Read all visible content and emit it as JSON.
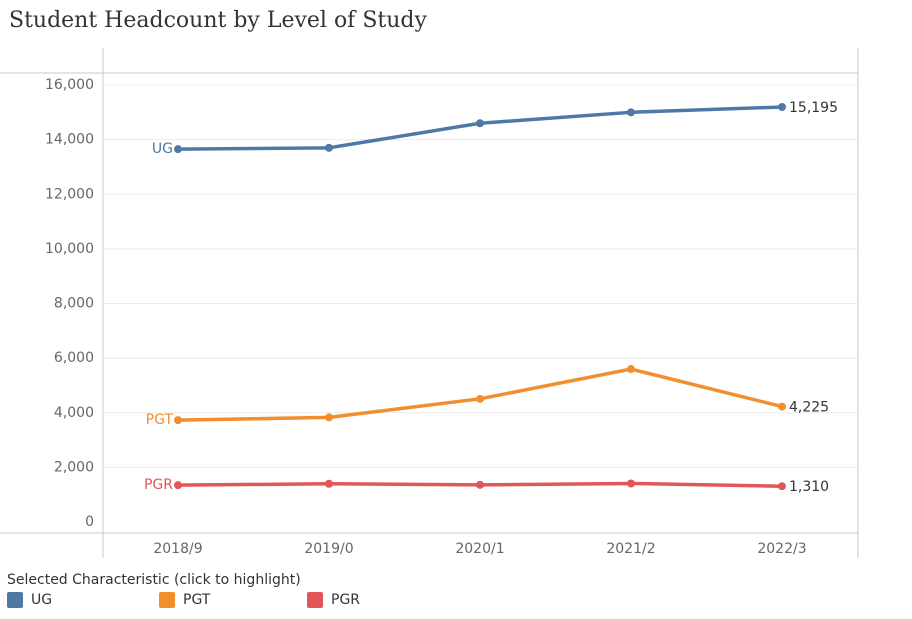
{
  "title": "Student Headcount by Level of Study",
  "legend": {
    "title": "Selected Characteristic (click to highlight)",
    "items": [
      {
        "label": "UG",
        "color": "#4e79a7"
      },
      {
        "label": "PGT",
        "color": "#f28e2b"
      },
      {
        "label": "PGR",
        "color": "#e15759"
      }
    ]
  },
  "chart_data": {
    "type": "line",
    "title": "Student Headcount by Level of Study",
    "xlabel": "",
    "ylabel": "",
    "categories": [
      "2018/9",
      "2019/0",
      "2020/1",
      "2021/2",
      "2022/3"
    ],
    "ylim": [
      0,
      16600
    ],
    "yticks": [
      0,
      2000,
      4000,
      6000,
      8000,
      10000,
      12000,
      14000,
      16000
    ],
    "ytick_labels": [
      "0",
      "2,000",
      "4,000",
      "6,000",
      "8,000",
      "10,000",
      "12,000",
      "14,000",
      "16,000"
    ],
    "grid": true,
    "legend_position": "bottom-left",
    "series": [
      {
        "name": "UG",
        "color": "#4e79a7",
        "values": [
          13650,
          13700,
          14600,
          15000,
          15195
        ],
        "end_label": "15,195"
      },
      {
        "name": "PGT",
        "color": "#f28e2b",
        "values": [
          3730,
          3830,
          4510,
          5600,
          4225
        ],
        "end_label": "4,225"
      },
      {
        "name": "PGR",
        "color": "#e15759",
        "values": [
          1350,
          1400,
          1360,
          1410,
          1310
        ],
        "end_label": "1,310"
      }
    ]
  }
}
